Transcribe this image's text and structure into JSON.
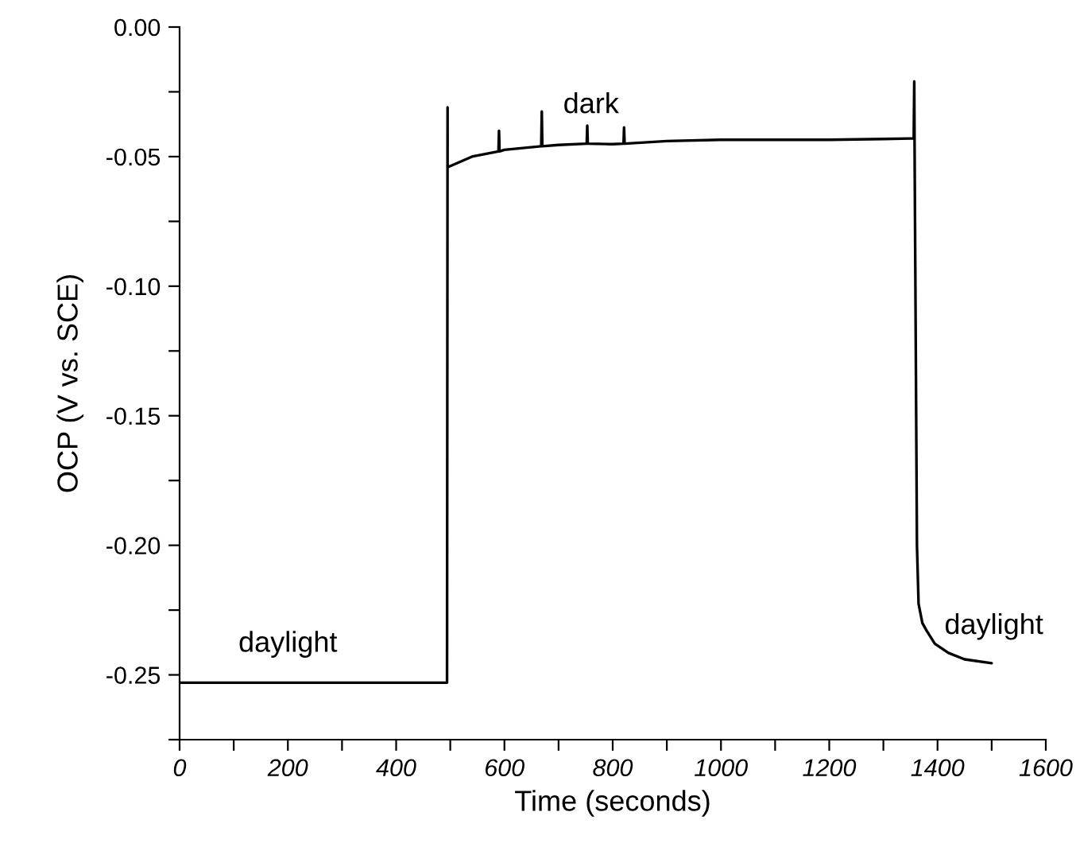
{
  "chart_data": {
    "type": "line",
    "xlabel": "Time (seconds)",
    "ylabel": "OCP (V vs. SCE)",
    "x": [
      0,
      494,
      495,
      495,
      496,
      540,
      589,
      590,
      591,
      600,
      668,
      669,
      670,
      700,
      752,
      753,
      754,
      800,
      820,
      821,
      822,
      900,
      1000,
      1100,
      1200,
      1300,
      1350,
      1356,
      1357,
      1358,
      1362,
      1365,
      1372,
      1380,
      1395,
      1420,
      1450,
      1500
    ],
    "series": [
      {
        "color": "#000000",
        "values": [
          -0.253,
          -0.253,
          -0.031,
          -0.0545,
          -0.054,
          -0.05,
          -0.048,
          -0.04,
          -0.048,
          -0.0474,
          -0.046,
          -0.0326,
          -0.046,
          -0.0455,
          -0.045,
          -0.038,
          -0.045,
          -0.0452,
          -0.045,
          -0.0387,
          -0.045,
          -0.044,
          -0.0435,
          -0.0435,
          -0.0435,
          -0.0432,
          -0.043,
          -0.043,
          -0.021,
          -0.06,
          -0.2,
          -0.2226,
          -0.23,
          -0.233,
          -0.238,
          -0.2415,
          -0.244,
          -0.2455
        ]
      }
    ],
    "xlim": [
      0,
      1600
    ],
    "ylim": [
      -0.275,
      0
    ],
    "xticks": [
      0,
      {
        "value": 100,
        "label": null
      },
      200,
      {
        "value": 300,
        "label": null
      },
      400,
      {
        "value": 500,
        "label": null
      },
      600,
      {
        "value": 700,
        "label": null
      },
      800,
      {
        "value": 900,
        "label": null
      },
      1000,
      {
        "value": 1100,
        "label": null
      },
      1200,
      {
        "value": 1300,
        "label": null
      },
      1400,
      {
        "value": 1500,
        "label": null
      },
      1600
    ],
    "yticks": [
      {
        "value": -0.275,
        "label": null
      },
      {
        "value": -0.25,
        "label": "-0.25"
      },
      {
        "value": -0.225,
        "label": null
      },
      {
        "value": -0.2,
        "label": "-0.20"
      },
      {
        "value": -0.175,
        "label": null
      },
      {
        "value": -0.15,
        "label": "-0.15"
      },
      {
        "value": -0.125,
        "label": null
      },
      {
        "value": -0.1,
        "label": "-0.10"
      },
      {
        "value": -0.075,
        "label": null
      },
      {
        "value": -0.05,
        "label": "-0.05"
      },
      {
        "value": -0.025,
        "label": null
      },
      {
        "value": 0,
        "label": "0.00"
      }
    ],
    "annotations": [
      "daylight",
      {
        "text": "dark",
        "x": 760,
        "y": -0.0355
      },
      "daylight"
    ],
    "grid": false,
    "legend": false,
    "marker": "none",
    "line_style": "solid"
  }
}
